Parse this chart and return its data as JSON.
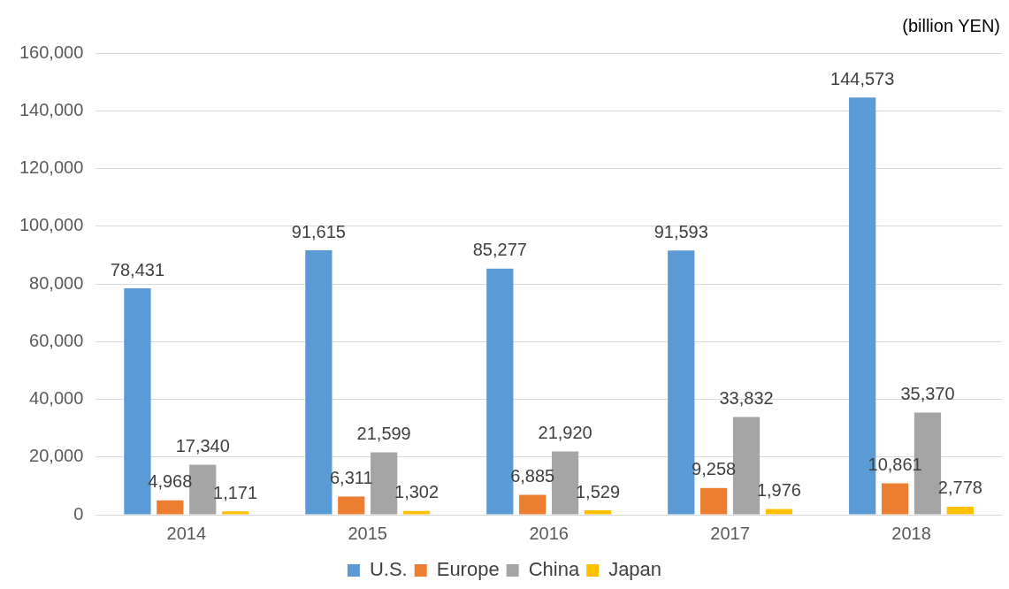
{
  "chart_data": {
    "type": "bar",
    "annotations": [
      "(billion YEN)"
    ],
    "categories": [
      "2014",
      "2015",
      "2016",
      "2017",
      "2018"
    ],
    "series": [
      {
        "name": "U.S.",
        "color": "#5b9bd5",
        "values": [
          78431,
          91615,
          85277,
          91593,
          144573
        ],
        "value_labels": [
          "78,431",
          "91,615",
          "85,277",
          "91,593",
          "144,573"
        ]
      },
      {
        "name": "Europe",
        "color": "#ed7d31",
        "values": [
          4968,
          6311,
          6885,
          9258,
          10861
        ],
        "value_labels": [
          "4,968",
          "6,311",
          "6,885",
          "9,258",
          "10,861"
        ]
      },
      {
        "name": "China",
        "color": "#a5a5a5",
        "values": [
          17340,
          21599,
          21920,
          33832,
          35370
        ],
        "value_labels": [
          "17,340",
          "21,599",
          "21,920",
          "33,832",
          "35,370"
        ]
      },
      {
        "name": "Japan",
        "color": "#ffc000",
        "values": [
          1171,
          1302,
          1529,
          1976,
          2778
        ],
        "value_labels": [
          "1,171",
          "1,302",
          "1,529",
          "1,976",
          "2,778"
        ]
      }
    ],
    "ylim": [
      0,
      160000
    ],
    "yticks": [
      {
        "value": 0,
        "label": "0"
      },
      {
        "value": 20000,
        "label": "20,000"
      },
      {
        "value": 40000,
        "label": "40,000"
      },
      {
        "value": 60000,
        "label": "60,000"
      },
      {
        "value": 80000,
        "label": "80,000"
      },
      {
        "value": 100000,
        "label": "100,000"
      },
      {
        "value": 120000,
        "label": "120,000"
      },
      {
        "value": 140000,
        "label": "140,000"
      },
      {
        "value": 160000,
        "label": "160,000"
      }
    ],
    "grid": "y",
    "legend": "bottom"
  }
}
